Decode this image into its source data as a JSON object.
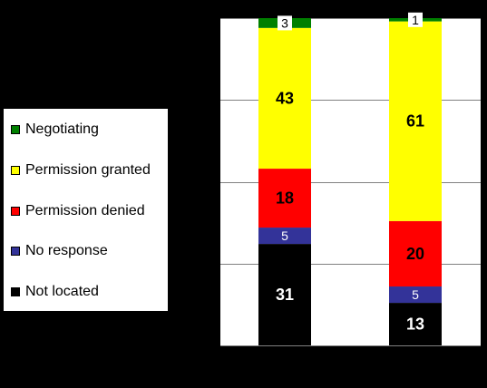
{
  "chart_data": {
    "type": "bar",
    "stacked": true,
    "normalized_percent": true,
    "categories": [
      "",
      ""
    ],
    "ylim": [
      0,
      100
    ],
    "yticks": [
      0,
      25,
      50,
      75,
      100
    ],
    "ytick_labels": [
      "",
      "",
      "",
      "",
      ""
    ],
    "grid": true,
    "legend_position": "left",
    "series": [
      {
        "name": "Not located",
        "color": "#000000",
        "values": [
          31,
          13
        ]
      },
      {
        "name": "No response",
        "color": "#333399",
        "values": [
          5,
          5
        ]
      },
      {
        "name": "Permission denied",
        "color": "#ff0000",
        "values": [
          18,
          20
        ]
      },
      {
        "name": "Permission granted",
        "color": "#ffff00",
        "values": [
          43,
          61
        ]
      },
      {
        "name": "Negotiating",
        "color": "#008000",
        "values": [
          3,
          1
        ]
      }
    ]
  },
  "legend": {
    "items": [
      {
        "label": "Negotiating",
        "color": "#008000"
      },
      {
        "label": "Permission granted",
        "color": "#ffff00"
      },
      {
        "label": "Permission denied",
        "color": "#ff0000"
      },
      {
        "label": "No response",
        "color": "#333399"
      },
      {
        "label": "Not located",
        "color": "#000000"
      }
    ]
  }
}
